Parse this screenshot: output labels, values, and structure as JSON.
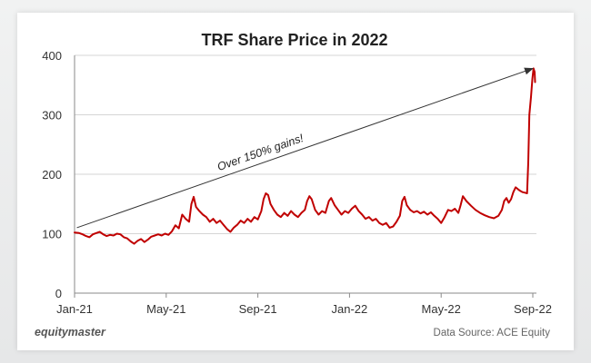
{
  "chart_data": {
    "type": "line",
    "title": "TRF Share Price in 2022",
    "xlabel": "",
    "ylabel": "",
    "ylim": [
      0,
      400
    ],
    "yticks": [
      0,
      100,
      200,
      300,
      400
    ],
    "xticks": [
      {
        "label": "Jan-21",
        "t": 0
      },
      {
        "label": "May-21",
        "t": 4
      },
      {
        "label": "Sep-21",
        "t": 8
      },
      {
        "label": "Jan-22",
        "t": 12
      },
      {
        "label": "May-22",
        "t": 16
      },
      {
        "label": "Sep-22",
        "t": 20
      }
    ],
    "xlim": [
      0,
      20.15
    ],
    "grid": true,
    "series": [
      {
        "name": "TRF Share Price",
        "color": "#c00000",
        "points": [
          [
            0.0,
            102
          ],
          [
            0.2,
            101
          ],
          [
            0.35,
            99
          ],
          [
            0.5,
            96
          ],
          [
            0.65,
            94
          ],
          [
            0.8,
            99
          ],
          [
            0.95,
            101
          ],
          [
            1.1,
            103
          ],
          [
            1.25,
            99
          ],
          [
            1.4,
            96
          ],
          [
            1.55,
            98
          ],
          [
            1.7,
            97
          ],
          [
            1.85,
            100
          ],
          [
            2.0,
            99
          ],
          [
            2.15,
            94
          ],
          [
            2.3,
            92
          ],
          [
            2.45,
            87
          ],
          [
            2.6,
            83
          ],
          [
            2.75,
            88
          ],
          [
            2.9,
            91
          ],
          [
            3.05,
            86
          ],
          [
            3.2,
            90
          ],
          [
            3.35,
            95
          ],
          [
            3.5,
            97
          ],
          [
            3.65,
            99
          ],
          [
            3.8,
            97
          ],
          [
            3.95,
            100
          ],
          [
            4.1,
            98
          ],
          [
            4.25,
            104
          ],
          [
            4.4,
            114
          ],
          [
            4.55,
            109
          ],
          [
            4.7,
            132
          ],
          [
            4.85,
            125
          ],
          [
            5.0,
            120
          ],
          [
            5.1,
            150
          ],
          [
            5.2,
            162
          ],
          [
            5.3,
            145
          ],
          [
            5.45,
            138
          ],
          [
            5.6,
            132
          ],
          [
            5.75,
            128
          ],
          [
            5.9,
            120
          ],
          [
            6.05,
            125
          ],
          [
            6.2,
            118
          ],
          [
            6.35,
            122
          ],
          [
            6.5,
            115
          ],
          [
            6.65,
            108
          ],
          [
            6.8,
            103
          ],
          [
            6.95,
            110
          ],
          [
            7.1,
            115
          ],
          [
            7.25,
            122
          ],
          [
            7.4,
            118
          ],
          [
            7.55,
            125
          ],
          [
            7.7,
            120
          ],
          [
            7.85,
            128
          ],
          [
            8.0,
            124
          ],
          [
            8.15,
            138
          ],
          [
            8.25,
            158
          ],
          [
            8.35,
            168
          ],
          [
            8.45,
            165
          ],
          [
            8.55,
            150
          ],
          [
            8.7,
            140
          ],
          [
            8.85,
            132
          ],
          [
            9.0,
            128
          ],
          [
            9.15,
            135
          ],
          [
            9.3,
            130
          ],
          [
            9.45,
            138
          ],
          [
            9.6,
            132
          ],
          [
            9.75,
            128
          ],
          [
            9.9,
            135
          ],
          [
            10.05,
            140
          ],
          [
            10.15,
            155
          ],
          [
            10.25,
            163
          ],
          [
            10.35,
            158
          ],
          [
            10.5,
            140
          ],
          [
            10.65,
            132
          ],
          [
            10.8,
            138
          ],
          [
            10.95,
            135
          ],
          [
            11.1,
            155
          ],
          [
            11.2,
            160
          ],
          [
            11.35,
            148
          ],
          [
            11.5,
            140
          ],
          [
            11.65,
            132
          ],
          [
            11.8,
            138
          ],
          [
            11.95,
            135
          ],
          [
            12.1,
            142
          ],
          [
            12.25,
            147
          ],
          [
            12.4,
            138
          ],
          [
            12.55,
            132
          ],
          [
            12.7,
            125
          ],
          [
            12.85,
            128
          ],
          [
            13.0,
            122
          ],
          [
            13.15,
            125
          ],
          [
            13.3,
            118
          ],
          [
            13.45,
            115
          ],
          [
            13.6,
            118
          ],
          [
            13.75,
            110
          ],
          [
            13.9,
            112
          ],
          [
            14.05,
            120
          ],
          [
            14.2,
            130
          ],
          [
            14.3,
            155
          ],
          [
            14.4,
            162
          ],
          [
            14.5,
            148
          ],
          [
            14.65,
            140
          ],
          [
            14.8,
            136
          ],
          [
            14.95,
            138
          ],
          [
            15.1,
            134
          ],
          [
            15.25,
            137
          ],
          [
            15.4,
            132
          ],
          [
            15.55,
            136
          ],
          [
            15.7,
            130
          ],
          [
            15.85,
            125
          ],
          [
            16.0,
            118
          ],
          [
            16.15,
            128
          ],
          [
            16.3,
            140
          ],
          [
            16.45,
            138
          ],
          [
            16.6,
            142
          ],
          [
            16.75,
            135
          ],
          [
            16.85,
            148
          ],
          [
            16.95,
            163
          ],
          [
            17.1,
            155
          ],
          [
            17.3,
            147
          ],
          [
            17.5,
            140
          ],
          [
            17.7,
            135
          ],
          [
            17.9,
            131
          ],
          [
            18.1,
            128
          ],
          [
            18.3,
            126
          ],
          [
            18.5,
            130
          ],
          [
            18.65,
            140
          ],
          [
            18.75,
            155
          ],
          [
            18.85,
            160
          ],
          [
            18.95,
            152
          ],
          [
            19.05,
            158
          ],
          [
            19.15,
            170
          ],
          [
            19.25,
            178
          ],
          [
            19.35,
            175
          ],
          [
            19.45,
            172
          ],
          [
            19.55,
            170
          ],
          [
            19.65,
            169
          ],
          [
            19.75,
            168
          ],
          [
            19.8,
            220
          ],
          [
            19.85,
            300
          ],
          [
            19.92,
            330
          ],
          [
            19.98,
            360
          ],
          [
            20.03,
            378
          ],
          [
            20.08,
            372
          ],
          [
            20.1,
            355
          ]
        ]
      }
    ],
    "annotation": {
      "text": "Over 150% gains!",
      "from": [
        0.1,
        110
      ],
      "to": [
        20.0,
        378
      ]
    }
  },
  "footer": {
    "brand": "equitymaster",
    "source": "Data Source: ACE Equity"
  }
}
